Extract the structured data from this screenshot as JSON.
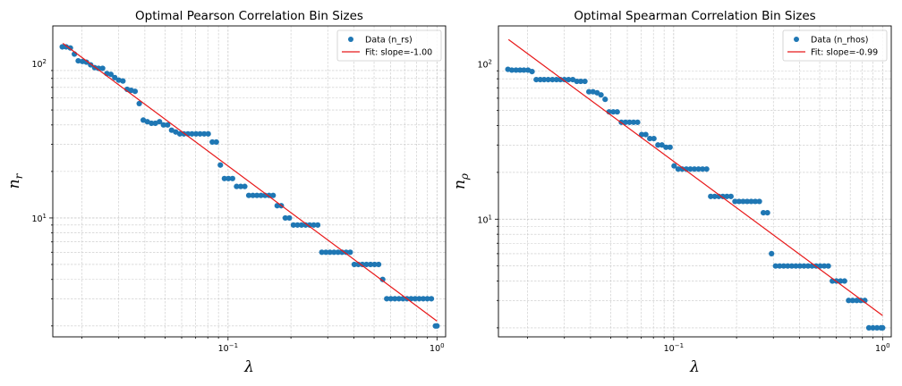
{
  "chart_data": [
    {
      "type": "scatter",
      "title": "Optimal Pearson Correlation Bin Sizes",
      "xlabel": "λ",
      "ylabel_base": "n",
      "ylabel_sub": "r",
      "xscale": "log",
      "yscale": "log",
      "xlim": [
        0.0145,
        1.1
      ],
      "ylim": [
        1.7,
        175
      ],
      "x_ticks": [
        {
          "value": 0.1,
          "base": "10",
          "exp": "−1"
        },
        {
          "value": 1,
          "base": "10",
          "exp": "0"
        }
      ],
      "y_ticks": [
        {
          "value": 10,
          "base": "10",
          "exp": "1"
        },
        {
          "value": 100,
          "base": "10",
          "exp": "2"
        }
      ],
      "grid": true,
      "legend_position": "top-right",
      "colors": {
        "data": "#1f77b4",
        "fit": "#e8191a"
      },
      "series": [
        {
          "name": "Data (n_rs)",
          "kind": "markers",
          "x": [
            0.0161,
            0.0168,
            0.0176,
            0.0184,
            0.0192,
            0.0201,
            0.021,
            0.022,
            0.023,
            0.024,
            0.0251,
            0.0263,
            0.0275,
            0.0287,
            0.03,
            0.0314,
            0.0329,
            0.0344,
            0.0359,
            0.0376,
            0.0393,
            0.0411,
            0.043,
            0.0449,
            0.047,
            0.0491,
            0.0514,
            0.0537,
            0.0562,
            0.0588,
            0.0615,
            0.0643,
            0.0672,
            0.0703,
            0.0735,
            0.0769,
            0.0804,
            0.0841,
            0.0879,
            0.0919,
            0.0961,
            0.1005,
            0.1051,
            0.1099,
            0.115,
            0.1202,
            0.1257,
            0.1315,
            0.1375,
            0.1438,
            0.1504,
            0.1572,
            0.1644,
            0.1719,
            0.1798,
            0.188,
            0.1966,
            0.2056,
            0.215,
            0.2248,
            0.2351,
            0.2458,
            0.2571,
            0.2688,
            0.2811,
            0.294,
            0.3074,
            0.3215,
            0.3362,
            0.3515,
            0.3676,
            0.3844,
            0.402,
            0.4204,
            0.4396,
            0.4597,
            0.4807,
            0.5027,
            0.5257,
            0.5497,
            0.5748,
            0.6011,
            0.6286,
            0.6574,
            0.6874,
            0.7188,
            0.7517,
            0.7861,
            0.822,
            0.8596,
            0.8989,
            0.94,
            0.983,
            1.0
          ],
          "y": [
            128,
            128,
            126,
            115,
            104,
            103,
            102,
            98,
            94,
            93,
            93,
            86,
            85,
            81,
            78,
            77,
            68,
            67,
            66,
            55,
            43,
            42,
            41,
            41,
            42,
            40,
            40,
            37,
            36,
            35,
            35,
            35,
            35,
            35,
            35,
            35,
            35,
            31,
            31,
            22,
            18,
            18,
            18,
            16,
            16,
            16,
            14,
            14,
            14,
            14,
            14,
            14,
            14,
            12,
            12,
            10,
            10,
            9,
            9,
            9,
            9,
            9,
            9,
            9,
            6,
            6,
            6,
            6,
            6,
            6,
            6,
            6,
            5,
            5,
            5,
            5,
            5,
            5,
            5,
            4,
            3,
            3,
            3,
            3,
            3,
            3,
            3,
            3,
            3,
            3,
            3,
            3,
            2,
            2
          ]
        },
        {
          "name": "Fit: slope=-1.00",
          "kind": "line",
          "x": [
            0.0162,
            1.0
          ],
          "y": [
            135,
            2.15
          ]
        }
      ]
    },
    {
      "type": "scatter",
      "title": "Optimal Spearman Correlation Bin Sizes",
      "xlabel": "λ",
      "ylabel_base": "n",
      "ylabel_sub": "ρ",
      "xscale": "log",
      "yscale": "log",
      "xlim": [
        0.0145,
        1.1
      ],
      "ylim": [
        1.75,
        175
      ],
      "x_ticks": [
        {
          "value": 0.1,
          "base": "10",
          "exp": "−1"
        },
        {
          "value": 1,
          "base": "10",
          "exp": "0"
        }
      ],
      "y_ticks": [
        {
          "value": 10,
          "base": "10",
          "exp": "1"
        },
        {
          "value": 100,
          "base": "10",
          "exp": "2"
        }
      ],
      "grid": true,
      "legend_position": "top-right",
      "colors": {
        "data": "#1f77b4",
        "fit": "#e8191a"
      },
      "series": [
        {
          "name": "Data (n_rhos)",
          "kind": "markers",
          "x": [
            0.0161,
            0.0168,
            0.0176,
            0.0184,
            0.0192,
            0.0201,
            0.021,
            0.022,
            0.023,
            0.024,
            0.0251,
            0.0263,
            0.0275,
            0.0287,
            0.03,
            0.0314,
            0.0329,
            0.0344,
            0.0359,
            0.0376,
            0.0393,
            0.0411,
            0.043,
            0.0449,
            0.047,
            0.0491,
            0.0514,
            0.0537,
            0.0562,
            0.0588,
            0.0615,
            0.0643,
            0.0672,
            0.0703,
            0.0735,
            0.0769,
            0.0804,
            0.0841,
            0.0879,
            0.0919,
            0.0961,
            0.1005,
            0.1051,
            0.1099,
            0.115,
            0.1202,
            0.1257,
            0.1315,
            0.1375,
            0.1438,
            0.1504,
            0.1572,
            0.1644,
            0.1719,
            0.1798,
            0.188,
            0.1966,
            0.2056,
            0.215,
            0.2248,
            0.2351,
            0.2458,
            0.2571,
            0.2688,
            0.2811,
            0.294,
            0.3074,
            0.3215,
            0.3362,
            0.3515,
            0.3676,
            0.3844,
            0.402,
            0.4204,
            0.4396,
            0.4597,
            0.4807,
            0.5027,
            0.5257,
            0.5497,
            0.5748,
            0.6011,
            0.6286,
            0.6574,
            0.6874,
            0.7188,
            0.7517,
            0.7861,
            0.822,
            0.8596,
            0.8989,
            0.94,
            0.983,
            1.0
          ],
          "y": [
            92,
            91,
            91,
            91,
            91,
            91,
            89,
            79,
            79,
            79,
            79,
            79,
            79,
            79,
            79,
            79,
            79,
            77,
            77,
            77,
            66,
            66,
            65,
            63,
            59,
            49,
            49,
            49,
            42,
            42,
            42,
            42,
            42,
            35,
            35,
            33,
            33,
            30,
            30,
            29,
            29,
            22,
            21,
            21,
            21,
            21,
            21,
            21,
            21,
            21,
            14,
            14,
            14,
            14,
            14,
            14,
            13,
            13,
            13,
            13,
            13,
            13,
            13,
            11,
            11,
            6,
            5,
            5,
            5,
            5,
            5,
            5,
            5,
            5,
            5,
            5,
            5,
            5,
            5,
            5,
            4,
            4,
            4,
            4,
            3,
            3,
            3,
            3,
            3,
            2,
            2,
            2,
            2,
            2
          ]
        },
        {
          "name": "Fit: slope=-0.99",
          "kind": "line",
          "x": [
            0.0162,
            1.0
          ],
          "y": [
            143,
            2.4
          ]
        }
      ]
    }
  ]
}
